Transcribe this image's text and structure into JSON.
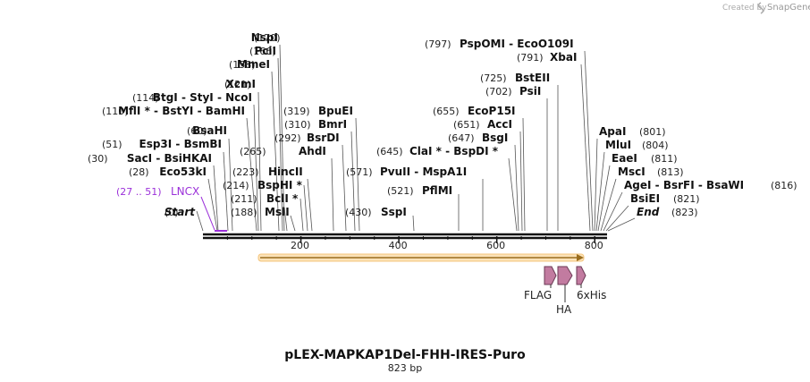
{
  "title": "pLEX-MAPKAP1Del-FHH-IRES-Puro",
  "length": "823 bp",
  "credit": {
    "text": "Created by",
    "brand": "SnapGene"
  },
  "feature_lncx": {
    "range": "(27 .. 51)",
    "name": "LNCX"
  },
  "features": [
    "FLAG",
    "HA",
    "6xHis"
  ],
  "ruler": {
    "ticks": [
      "200",
      "400",
      "600",
      "800"
    ],
    "values": [
      200,
      400,
      600,
      800
    ]
  },
  "sites": [
    {
      "pos": "(170)",
      "parts": [
        {
          "t": "NspI"
        }
      ]
    },
    {
      "pos": "(166)",
      "parts": [
        {
          "t": "PciI"
        }
      ]
    },
    {
      "pos": "(158)",
      "parts": [
        {
          "t": "MmeI"
        }
      ]
    },
    {
      "pos": "(121)",
      "parts": [
        {
          "t": "XcmI"
        }
      ]
    },
    {
      "pos": "(114)",
      "parts": [
        {
          "t": "BtgI"
        },
        {
          "t": " - ",
          "s": 1
        },
        {
          "t": "StyI"
        },
        {
          "t": " - ",
          "s": 1
        },
        {
          "t": "NcoI"
        }
      ]
    },
    {
      "pos": "(110)",
      "parts": [
        {
          "t": "MflI *"
        },
        {
          "t": " - ",
          "s": 1
        },
        {
          "t": "BstYI"
        },
        {
          "t": " - ",
          "s": 1
        },
        {
          "t": "BamHI"
        }
      ]
    },
    {
      "pos": "(60)",
      "parts": [
        {
          "t": "BsaHI"
        }
      ]
    },
    {
      "pos": "(51)",
      "parts": [
        {
          "t": "Esp3I"
        },
        {
          "t": " - ",
          "s": 1
        },
        {
          "t": "BsmBI"
        }
      ]
    },
    {
      "pos": "(30)",
      "parts": [
        {
          "t": "SacI"
        },
        {
          "t": " - ",
          "s": 1
        },
        {
          "t": "BsiHKAI"
        }
      ]
    },
    {
      "pos": "(28)",
      "parts": [
        {
          "t": "Eco53kI"
        }
      ]
    },
    {
      "pos": "(0)",
      "parts": [
        {
          "t": "Start",
          "i": 1
        }
      ]
    },
    {
      "pos": "(319)",
      "parts": [
        {
          "t": "BpuEI"
        }
      ]
    },
    {
      "pos": "(310)",
      "parts": [
        {
          "t": "BmrI"
        }
      ]
    },
    {
      "pos": "(292)",
      "parts": [
        {
          "t": "BsrDI"
        }
      ]
    },
    {
      "pos": "(265)",
      "parts": [
        {
          "t": "AhdI"
        }
      ]
    },
    {
      "pos": "(223)",
      "parts": [
        {
          "t": "HincII"
        }
      ]
    },
    {
      "pos": "(214)",
      "parts": [
        {
          "t": "BspHI *"
        }
      ]
    },
    {
      "pos": "(211)",
      "parts": [
        {
          "t": "BclI *"
        }
      ]
    },
    {
      "pos": "(188)",
      "parts": [
        {
          "t": "MslI"
        }
      ]
    },
    {
      "pos": "(797)",
      "parts": [
        {
          "t": "PspOMI"
        },
        {
          "t": " - ",
          "s": 1
        },
        {
          "t": "EcoO109I"
        }
      ]
    },
    {
      "pos": "(791)",
      "parts": [
        {
          "t": "XbaI"
        }
      ]
    },
    {
      "pos": "(725)",
      "parts": [
        {
          "t": "BstEII"
        }
      ]
    },
    {
      "pos": "(702)",
      "parts": [
        {
          "t": "PsiI"
        }
      ]
    },
    {
      "pos": "(655)",
      "parts": [
        {
          "t": "EcoP15I"
        }
      ]
    },
    {
      "pos": "(651)",
      "parts": [
        {
          "t": "AccI"
        }
      ]
    },
    {
      "pos": "(647)",
      "parts": [
        {
          "t": "BsgI"
        }
      ]
    },
    {
      "pos": "(645)",
      "parts": [
        {
          "t": "ClaI *"
        },
        {
          "t": " - ",
          "s": 1
        },
        {
          "t": "BspDI *"
        }
      ]
    },
    {
      "pos": "(571)",
      "parts": [
        {
          "t": "PvuII"
        },
        {
          "t": " - ",
          "s": 1
        },
        {
          "t": "MspA1I"
        }
      ]
    },
    {
      "pos": "(521)",
      "parts": [
        {
          "t": "PflMI"
        }
      ]
    },
    {
      "pos": "(430)",
      "parts": [
        {
          "t": "SspI"
        }
      ]
    },
    {
      "pos": "(801)",
      "parts": [
        {
          "t": "ApaI"
        }
      ]
    },
    {
      "pos": "(804)",
      "parts": [
        {
          "t": "MluI"
        }
      ]
    },
    {
      "pos": "(811)",
      "parts": [
        {
          "t": "EaeI"
        }
      ]
    },
    {
      "pos": "(813)",
      "parts": [
        {
          "t": "MscI"
        }
      ]
    },
    {
      "pos": "(816)",
      "parts": [
        {
          "t": "AgeI"
        },
        {
          "t": " - ",
          "s": 1
        },
        {
          "t": "BsrFI"
        },
        {
          "t": " - ",
          "s": 1
        },
        {
          "t": "BsaWI"
        }
      ]
    },
    {
      "pos": "(821)",
      "parts": [
        {
          "t": "BsiEI"
        }
      ]
    },
    {
      "pos": "(823)",
      "parts": [
        {
          "t": "End",
          "i": 1
        }
      ]
    }
  ]
}
